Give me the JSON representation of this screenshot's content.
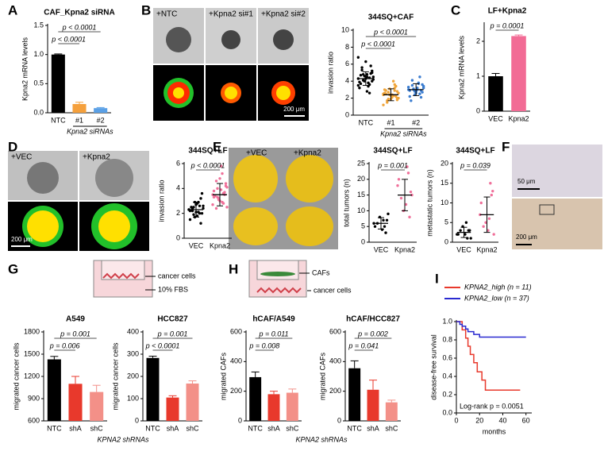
{
  "panel_labels": [
    "A",
    "B",
    "C",
    "D",
    "E",
    "F",
    "G",
    "H",
    "I"
  ],
  "micrographs": {
    "B": [
      "+NTC",
      "+Kpna2 si#1",
      "+Kpna2 si#2",
      "200 μm"
    ],
    "D": [
      "+VEC",
      "+Kpna2",
      "200 μm"
    ],
    "E": [
      "+VEC",
      "+Kpna2"
    ],
    "F": [
      "50 μm",
      "200 μm"
    ]
  },
  "diagrams": {
    "G": [
      "cancer cells",
      "10% FBS"
    ],
    "H": [
      "CAFs",
      "cancer cells"
    ]
  },
  "chart_data": [
    {
      "type": "bar",
      "title": "CAF_Kpna2 siRNA",
      "ylabel": "Kpna2 mRNA levels",
      "xlabel": "Kpna2 siRNAs",
      "categories": [
        "NTC",
        "#1",
        "#2"
      ],
      "values": [
        1.0,
        0.15,
        0.08
      ],
      "errors": [
        0.01,
        0.03,
        0.01
      ],
      "colors": [
        "#000000",
        "#f5a03c",
        "#5aa0e6"
      ],
      "ylim": [
        0,
        1.5
      ],
      "yticks": [
        {
          "value": 0,
          "label": "0.0"
        },
        0.5,
        {
          "value": 1,
          "label": "1.0"
        },
        1.5
      ],
      "annotations": [
        "p < 0.0001",
        "p < 0.0001"
      ]
    },
    {
      "type": "dot",
      "title": "344SQ+CAF",
      "ylabel": "invasion ratio",
      "xlabel": "Kpna2 siRNAs",
      "ylim": [
        0,
        10
      ],
      "yticks": [
        0,
        2,
        4,
        6,
        8,
        10
      ],
      "groups": [
        {
          "name": "NTC",
          "color": "#000000",
          "mean": 4.3,
          "sd": 0.8,
          "points": [
            4.3,
            5.2,
            3.6,
            4.8,
            4.0,
            5.6,
            3.2,
            4.5,
            4.9,
            3.8,
            6.3,
            4.1,
            4.7,
            3.5,
            5.0,
            4.4,
            2.8,
            4.6,
            5.3,
            3.9,
            4.2,
            5.8,
            3.4,
            4.3,
            4.8,
            3.7,
            6.8,
            4.0,
            2.6,
            4.5
          ]
        },
        {
          "name": "#1",
          "color": "#f0a53a",
          "mean": 2.4,
          "sd": 0.7,
          "points": [
            2.4,
            1.8,
            2.9,
            2.2,
            3.1,
            1.5,
            2.6,
            2.0,
            3.4,
            2.3,
            1.9,
            2.7,
            2.5,
            1.2,
            2.8,
            3.6,
            2.1,
            2.4,
            1.7,
            3.0,
            2.6,
            2.2,
            4.0,
            2.3,
            1.9,
            2.9,
            2.5,
            2.0,
            3.2,
            2.4
          ]
        },
        {
          "name": "#2",
          "color": "#3a7cd0",
          "mean": 3.0,
          "sd": 0.7,
          "points": [
            3.0,
            3.6,
            2.5,
            3.2,
            2.8,
            4.1,
            2.2,
            3.4,
            2.9,
            3.8,
            2.6,
            3.1,
            1.7,
            3.3,
            2.7,
            4.5,
            3.0,
            2.4,
            3.5,
            2.9,
            3.2,
            2.1,
            3.7,
            2.8,
            3.0
          ]
        }
      ],
      "annotations": [
        "p < 0.0001",
        "p < 0.0001"
      ]
    },
    {
      "type": "bar",
      "title": "LF+Kpna2",
      "ylabel": "Kpna2 mRNA levels",
      "categories": [
        "VEC",
        "Kpna2"
      ],
      "values": [
        1.0,
        2.15
      ],
      "errors": [
        0.08,
        0.03
      ],
      "colors": [
        "#000000",
        "#f26b95"
      ],
      "ylim": [
        0,
        2.5
      ],
      "yticks": [
        0,
        1,
        2
      ],
      "annotations": [
        "p = 0.0001"
      ]
    },
    {
      "type": "dot",
      "title": "344SQ+LF",
      "ylabel": "invasion ratio",
      "ylim": [
        0,
        6
      ],
      "yticks": [
        0,
        2,
        4,
        6
      ],
      "groups": [
        {
          "name": "VEC",
          "color": "#000000",
          "mean": 2.3,
          "sd": 0.6,
          "points": [
            2.3,
            2.0,
            2.6,
            1.8,
            2.9,
            2.2,
            1.5,
            2.4,
            3.2,
            2.1,
            2.7,
            1.9,
            2.5,
            2.3,
            3.6,
            2.0,
            2.8,
            1.7,
            2.4,
            2.2,
            2.6,
            1.2,
            2.9,
            2.1,
            2.5
          ]
        },
        {
          "name": "Kpna2",
          "color": "#f0709a",
          "mean": 3.5,
          "sd": 0.9,
          "points": [
            3.5,
            4.2,
            2.8,
            3.9,
            3.1,
            4.6,
            3.3,
            2.5,
            3.7,
            5.2,
            3.0,
            4.0,
            3.4,
            2.7,
            4.4,
            3.6,
            5.8,
            3.2,
            2.4,
            3.8,
            4.1,
            3.5,
            2.9,
            4.8,
            3.3
          ]
        }
      ],
      "annotations": [
        "p < 0.0001"
      ]
    },
    {
      "type": "dot",
      "title": "344SQ+LF",
      "ylabel": "total tumors (n)",
      "ylim": [
        0,
        25
      ],
      "yticks": [
        0,
        5,
        10,
        15,
        20,
        25
      ],
      "groups": [
        {
          "name": "VEC",
          "color": "#000000",
          "mean": 6,
          "sd": 1.8,
          "points": [
            6,
            7,
            5,
            4,
            8,
            6,
            5,
            9,
            3,
            7
          ]
        },
        {
          "name": "Kpna2",
          "color": "#f0709a",
          "mean": 15,
          "sd": 5,
          "points": [
            18,
            16,
            22,
            12,
            10,
            14,
            20,
            15,
            8,
            24
          ]
        }
      ],
      "annotations": [
        "p = 0.001"
      ]
    },
    {
      "type": "dot",
      "title": "344SQ+LF",
      "ylabel": "metastatic tumors (n)",
      "ylim": [
        0,
        20
      ],
      "yticks": [
        0,
        5,
        10,
        15,
        20
      ],
      "groups": [
        {
          "name": "VEC",
          "color": "#000000",
          "mean": 2.5,
          "sd": 1.3,
          "points": [
            2,
            3,
            1,
            2,
            4,
            3,
            2,
            1,
            3,
            5
          ]
        },
        {
          "name": "Kpna2",
          "color": "#f0709a",
          "mean": 7,
          "sd": 4.5,
          "points": [
            7,
            13,
            15,
            3,
            5,
            4,
            10,
            2,
            12,
            6
          ]
        }
      ],
      "annotations": [
        "p = 0.039"
      ]
    },
    {
      "type": "bar",
      "title": "A549",
      "ylabel": "migrated cancer cells",
      "xlabel": "KPNA2 shRNAs",
      "categories": [
        "NTC",
        "shA",
        "shC"
      ],
      "values": [
        1430,
        1100,
        990
      ],
      "errors": [
        40,
        100,
        90
      ],
      "colors": [
        "#000000",
        "#e8392c",
        "#f39088"
      ],
      "ylim": [
        600,
        1800
      ],
      "yticks": [
        600,
        900,
        1200,
        1500,
        1800
      ],
      "annotations": [
        "p = 0.001",
        "p = 0.006"
      ]
    },
    {
      "type": "bar",
      "title": "HCC827",
      "ylabel": "migrated cancer cells",
      "categories": [
        "NTC",
        "shA",
        "shC"
      ],
      "values": [
        283,
        105,
        168
      ],
      "errors": [
        8,
        8,
        12
      ],
      "colors": [
        "#000000",
        "#e8392c",
        "#f39088"
      ],
      "ylim": [
        0,
        400
      ],
      "yticks": [
        0,
        100,
        200,
        300,
        400
      ],
      "annotations": [
        "p = 0.001",
        "p < 0.0001"
      ]
    },
    {
      "type": "bar",
      "title": "hCAF/A549",
      "ylabel": "migrated CAFs",
      "xlabel": "KPNA2 shRNAs",
      "categories": [
        "NTC",
        "shA",
        "shC"
      ],
      "values": [
        295,
        180,
        190
      ],
      "errors": [
        35,
        20,
        25
      ],
      "colors": [
        "#000000",
        "#e8392c",
        "#f39088"
      ],
      "ylim": [
        0,
        600
      ],
      "yticks": [
        0,
        200,
        400,
        600
      ],
      "annotations": [
        "p = 0.011",
        "p = 0.008"
      ]
    },
    {
      "type": "bar",
      "title": "hCAF/HCC827",
      "ylabel": "migrated CAFs",
      "categories": [
        "NTC",
        "shA",
        "shC"
      ],
      "values": [
        355,
        210,
        125
      ],
      "errors": [
        50,
        65,
        15
      ],
      "colors": [
        "#000000",
        "#e8392c",
        "#f39088"
      ],
      "ylim": [
        0,
        600
      ],
      "yticks": [
        0,
        200,
        400,
        600
      ],
      "annotations": [
        "p = 0.002",
        "p = 0.041"
      ]
    },
    {
      "type": "line",
      "ylabel": "disease-free survival",
      "xlabel": "months",
      "xlim": [
        0,
        65
      ],
      "xticks": [
        0,
        20,
        40,
        60
      ],
      "ylim": [
        0,
        1
      ],
      "yticks": [
        {
          "value": 0,
          "label": "0.0"
        },
        0.2,
        0.4,
        0.6,
        0.8,
        {
          "value": 1,
          "label": "1.0"
        }
      ],
      "series": [
        {
          "name": "KPNA2_high (n = 11)",
          "color": "#e8392c",
          "x": [
            0,
            5,
            8,
            10,
            12,
            15,
            18,
            22,
            25,
            55
          ],
          "values": [
            1,
            0.91,
            0.82,
            0.73,
            0.64,
            0.55,
            0.45,
            0.36,
            0.25,
            0.25
          ]
        },
        {
          "name": "KPNA2_low (n = 37)",
          "color": "#2a2ad0",
          "x": [
            0,
            3,
            5,
            8,
            10,
            15,
            20,
            60
          ],
          "values": [
            1,
            0.97,
            0.95,
            0.92,
            0.89,
            0.86,
            0.83,
            0.83
          ]
        }
      ],
      "annotations": [
        "Log-rank p = 0.0051"
      ]
    }
  ]
}
